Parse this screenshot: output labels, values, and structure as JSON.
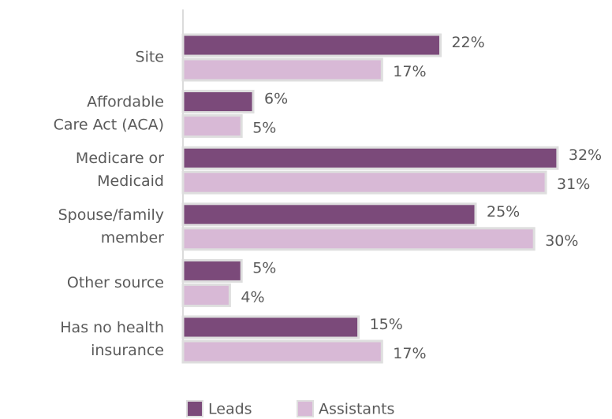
{
  "chart_data": {
    "type": "bar",
    "orientation": "horizontal",
    "categories": [
      [
        "Site"
      ],
      [
        "Affordable",
        "Care Act (ACA)"
      ],
      [
        "Medicare or",
        "Medicaid"
      ],
      [
        "Spouse/family",
        "member"
      ],
      [
        "Other source"
      ],
      [
        "Has no health",
        "insurance"
      ]
    ],
    "series": [
      {
        "name": "Leads",
        "color": "#7b4a7a",
        "values": [
          22,
          6,
          32,
          25,
          5,
          15
        ],
        "value_labels": [
          "22%",
          "6%",
          "32%",
          "25%",
          "5%",
          "15%"
        ]
      },
      {
        "name": "Assistants",
        "color": "#d8b9d6",
        "values": [
          17,
          5,
          31,
          30,
          4,
          17
        ],
        "value_labels": [
          "17%",
          "5%",
          "31%",
          "30%",
          "4%",
          "17%"
        ]
      }
    ]
  }
}
